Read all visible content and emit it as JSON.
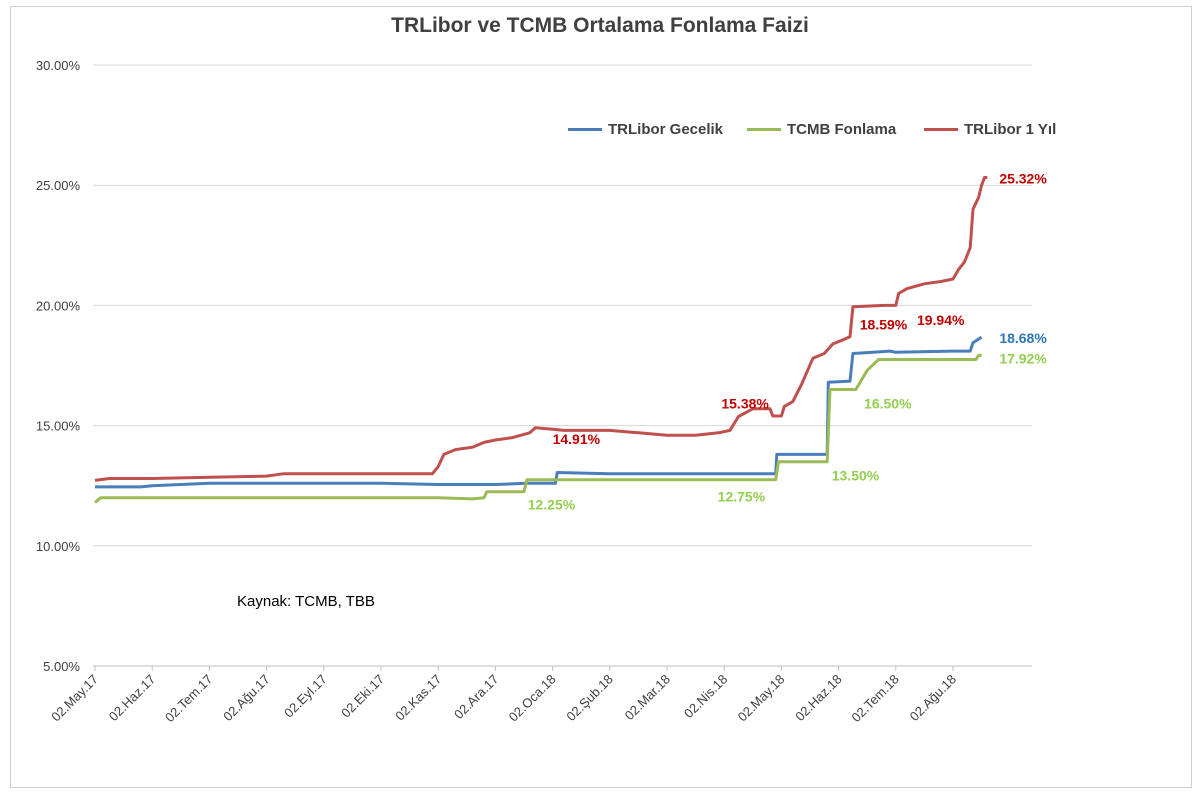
{
  "chart_data": {
    "type": "line",
    "title": "TRLibor ve TCMB Ortalama Fonlama Faizi",
    "source": "Kaynak: TCMB, TBB",
    "ylim": [
      5,
      30
    ],
    "y_ticks": [
      5,
      10,
      15,
      20,
      25,
      30
    ],
    "y_tick_labels": [
      "5.00%",
      "10.00%",
      "15.00%",
      "20.00%",
      "25.00%",
      "30.00%"
    ],
    "x_ticks": [
      "02.May.17",
      "02.Haz.17",
      "02.Tem.17",
      "02.Ağu.17",
      "02.Eyl.17",
      "02.Eki.17",
      "02.Kas.17",
      "02.Ara.17",
      "02.Oca.18",
      "02.Şub.18",
      "02.Mar.18",
      "02.Nis.18",
      "02.May.18",
      "02.Haz.18",
      "02.Tem.18",
      "02.Ağu.18"
    ],
    "x_ticks_month_index": [
      0,
      1,
      2,
      3,
      4,
      5,
      6,
      7,
      8,
      9,
      10,
      11,
      12,
      13,
      14,
      15
    ],
    "grid": true,
    "legend_position": "top-right",
    "series": [
      {
        "name": "TRLibor Gecelik",
        "color": "#4a7ebb",
        "points": [
          [
            0.0,
            12.45
          ],
          [
            0.8,
            12.45
          ],
          [
            1.0,
            12.5
          ],
          [
            2.0,
            12.6
          ],
          [
            3.0,
            12.6
          ],
          [
            4.0,
            12.6
          ],
          [
            5.0,
            12.6
          ],
          [
            6.0,
            12.55
          ],
          [
            7.0,
            12.55
          ],
          [
            7.55,
            12.6
          ],
          [
            8.05,
            12.6
          ],
          [
            8.08,
            13.05
          ],
          [
            9.0,
            13.0
          ],
          [
            10.0,
            13.0
          ],
          [
            11.0,
            13.0
          ],
          [
            11.9,
            13.0
          ],
          [
            11.92,
            13.8
          ],
          [
            12.8,
            13.8
          ],
          [
            12.82,
            16.8
          ],
          [
            13.2,
            16.85
          ],
          [
            13.25,
            18.0
          ],
          [
            13.6,
            18.05
          ],
          [
            13.9,
            18.1
          ],
          [
            14.0,
            18.05
          ],
          [
            15.0,
            18.1
          ],
          [
            15.3,
            18.1
          ],
          [
            15.35,
            18.45
          ],
          [
            15.5,
            18.68
          ]
        ],
        "end_label": "18.68%"
      },
      {
        "name": "TCMB Fonlama",
        "color": "#9bbb59",
        "points": [
          [
            0.0,
            11.8
          ],
          [
            0.1,
            12.0
          ],
          [
            1.0,
            12.0
          ],
          [
            2.0,
            12.0
          ],
          [
            3.0,
            12.0
          ],
          [
            4.0,
            12.0
          ],
          [
            5.0,
            12.0
          ],
          [
            6.0,
            12.0
          ],
          [
            6.6,
            11.95
          ],
          [
            6.8,
            12.0
          ],
          [
            6.85,
            12.25
          ],
          [
            7.5,
            12.25
          ],
          [
            7.55,
            12.75
          ],
          [
            8.0,
            12.75
          ],
          [
            9.0,
            12.75
          ],
          [
            10.0,
            12.75
          ],
          [
            11.0,
            12.75
          ],
          [
            11.9,
            12.75
          ],
          [
            11.95,
            13.5
          ],
          [
            12.8,
            13.5
          ],
          [
            12.85,
            16.5
          ],
          [
            13.3,
            16.5
          ],
          [
            13.5,
            17.3
          ],
          [
            13.7,
            17.75
          ],
          [
            14.0,
            17.75
          ],
          [
            15.0,
            17.75
          ],
          [
            15.4,
            17.75
          ],
          [
            15.45,
            17.92
          ],
          [
            15.5,
            17.92
          ]
        ],
        "end_label": "17.92%"
      },
      {
        "name": "TRLibor 1 Yıl",
        "color": "#c0504d",
        "points": [
          [
            0.0,
            12.72
          ],
          [
            0.25,
            12.8
          ],
          [
            1.0,
            12.8
          ],
          [
            2.0,
            12.85
          ],
          [
            3.0,
            12.9
          ],
          [
            3.3,
            13.0
          ],
          [
            4.0,
            13.0
          ],
          [
            5.0,
            13.0
          ],
          [
            5.9,
            13.0
          ],
          [
            6.0,
            13.3
          ],
          [
            6.1,
            13.8
          ],
          [
            6.3,
            14.0
          ],
          [
            6.6,
            14.1
          ],
          [
            6.8,
            14.3
          ],
          [
            7.0,
            14.4
          ],
          [
            7.3,
            14.5
          ],
          [
            7.6,
            14.7
          ],
          [
            7.7,
            14.91
          ],
          [
            8.0,
            14.85
          ],
          [
            8.2,
            14.8
          ],
          [
            9.0,
            14.8
          ],
          [
            9.5,
            14.7
          ],
          [
            10.0,
            14.6
          ],
          [
            10.5,
            14.6
          ],
          [
            10.9,
            14.7
          ],
          [
            11.1,
            14.8
          ],
          [
            11.25,
            15.38
          ],
          [
            11.5,
            15.7
          ],
          [
            11.8,
            15.7
          ],
          [
            11.85,
            15.4
          ],
          [
            12.0,
            15.4
          ],
          [
            12.05,
            15.8
          ],
          [
            12.2,
            16.0
          ],
          [
            12.35,
            16.7
          ],
          [
            12.55,
            17.8
          ],
          [
            12.75,
            18.0
          ],
          [
            12.9,
            18.4
          ],
          [
            13.1,
            18.59
          ],
          [
            13.2,
            18.7
          ],
          [
            13.25,
            19.94
          ],
          [
            13.8,
            20.0
          ],
          [
            14.0,
            20.0
          ],
          [
            14.05,
            20.5
          ],
          [
            14.2,
            20.7
          ],
          [
            14.5,
            20.9
          ],
          [
            14.8,
            21.0
          ],
          [
            15.0,
            21.1
          ],
          [
            15.1,
            21.5
          ],
          [
            15.2,
            21.8
          ],
          [
            15.3,
            22.4
          ],
          [
            15.35,
            24.0
          ],
          [
            15.45,
            24.5
          ],
          [
            15.5,
            25.0
          ],
          [
            15.55,
            25.32
          ],
          [
            15.6,
            25.32
          ]
        ],
        "end_label": "25.32%"
      }
    ],
    "annotations": [
      {
        "text": "14.91%",
        "series": "TRLibor 1 Yıl",
        "x": 8.0,
        "y": 14.91,
        "color": "#c00000"
      },
      {
        "text": "15.38%",
        "series": "TRLibor 1 Yıl",
        "x": 11.3,
        "y": 15.38,
        "color": "#c00000"
      },
      {
        "text": "18.59%",
        "series": "TRLibor 1 Yıl",
        "x": 13.3,
        "y": 18.59,
        "color": "#c00000"
      },
      {
        "text": "19.94%",
        "series": "TRLibor 1 Yıl",
        "x": 14.3,
        "y": 19.94,
        "color": "#c00000"
      },
      {
        "text": "25.32%",
        "series": "TRLibor 1 Yıl",
        "x": 15.6,
        "y": 25.32,
        "color": "#c00000"
      },
      {
        "text": "18.68%",
        "series": "TRLibor Gecelik",
        "x": 15.6,
        "y": 18.68,
        "color": "#2e75b6"
      },
      {
        "text": "12.25%",
        "series": "TCMB Fonlama",
        "x": 7.6,
        "y": 12.25,
        "color": "#92d050"
      },
      {
        "text": "12.75%",
        "series": "TCMB Fonlama",
        "x": 11.9,
        "y": 12.75,
        "color": "#92d050"
      },
      {
        "text": "13.50%",
        "series": "TCMB Fonlama",
        "x": 12.95,
        "y": 13.5,
        "color": "#92d050"
      },
      {
        "text": "16.50%",
        "series": "TCMB Fonlama",
        "x": 13.55,
        "y": 16.5,
        "color": "#92d050"
      },
      {
        "text": "17.92%",
        "series": "TCMB Fonlama",
        "x": 15.6,
        "y": 17.92,
        "color": "#92d050"
      }
    ]
  }
}
